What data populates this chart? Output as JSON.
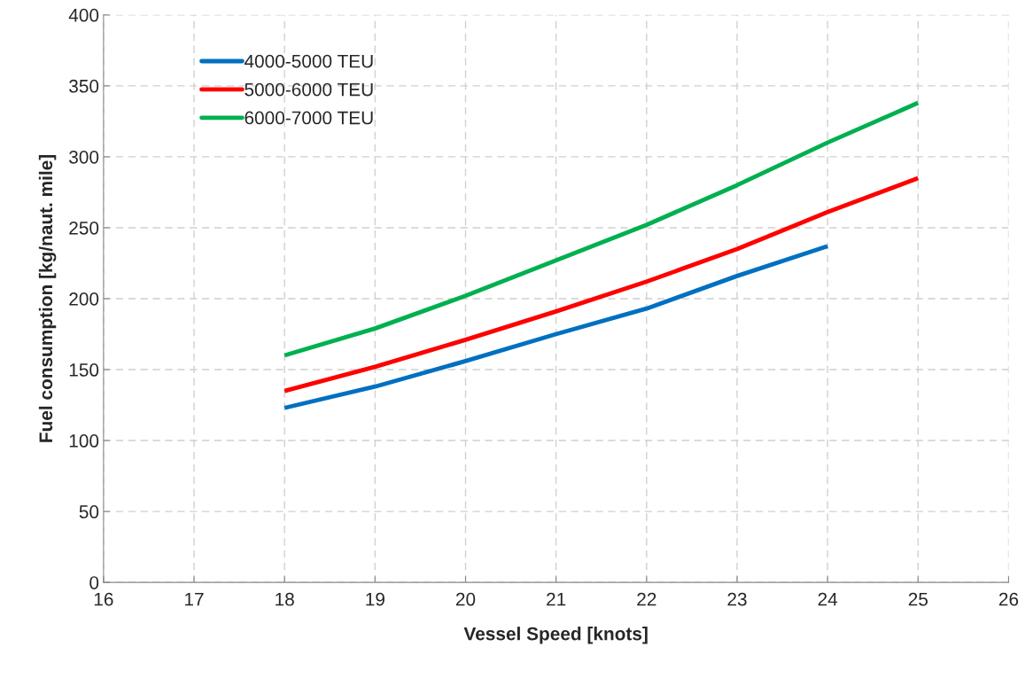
{
  "chart_data": {
    "type": "line",
    "xlabel": "Vessel Speed [knots]",
    "ylabel": "Fuel consumption [kg/naut. mile]",
    "x": [
      18,
      19,
      20,
      21,
      22,
      23,
      24,
      25
    ],
    "series": [
      {
        "name": "4000-5000 TEU",
        "color": "#0070c0",
        "values": [
          123,
          138,
          156,
          175,
          193,
          216,
          237,
          null
        ]
      },
      {
        "name": "5000-6000 TEU",
        "color": "#ff0000",
        "values": [
          135,
          152,
          171,
          191,
          212,
          235,
          261,
          285
        ]
      },
      {
        "name": "6000-7000 TEU",
        "color": "#00b050",
        "values": [
          160,
          179,
          202,
          227,
          252,
          280,
          310,
          338
        ]
      }
    ],
    "xlim": [
      16,
      26
    ],
    "xticks": [
      16,
      17,
      18,
      19,
      20,
      21,
      22,
      23,
      24,
      25,
      26
    ],
    "ylim": [
      0,
      400
    ],
    "yticks": [
      0,
      50,
      100,
      150,
      200,
      250,
      300,
      350,
      400
    ],
    "grid": true,
    "legend": "top left",
    "line_style": "solid",
    "marker": "none"
  }
}
